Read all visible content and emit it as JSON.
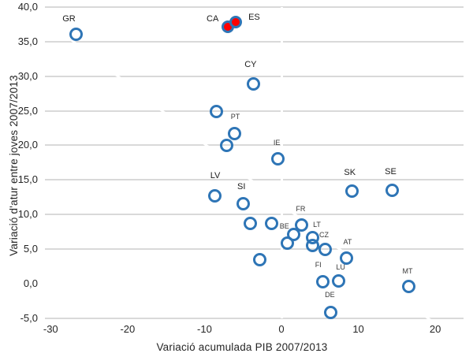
{
  "chart_data": {
    "type": "scatter",
    "title": "",
    "xlabel": "Variació acumulada PIB 2007/2013",
    "ylabel": "Variació d'atur entre joves 2007/2013",
    "x_ticks": [
      {
        "label": "-30",
        "value": -30
      },
      {
        "label": "-20",
        "value": -20
      },
      {
        "label": "-10",
        "value": -10
      },
      {
        "label": "0",
        "value": 0
      },
      {
        "label": "10",
        "value": 10
      },
      {
        "label": "20",
        "value": 20
      }
    ],
    "y_ticks": [
      {
        "label": "40,0",
        "value": 40
      },
      {
        "label": "35,0",
        "value": 35
      },
      {
        "label": "30,0",
        "value": 30
      },
      {
        "label": "25,0",
        "value": 25
      },
      {
        "label": "20,0",
        "value": 20
      },
      {
        "label": "15,0",
        "value": 15
      },
      {
        "label": "10,0",
        "value": 10
      },
      {
        "label": "5,0",
        "value": 5
      },
      {
        "label": "0,0",
        "value": 0
      },
      {
        "label": "-5,0",
        "value": -5
      }
    ],
    "xlim": [
      -30.7,
      23.7
    ],
    "ylim": [
      -5,
      40
    ],
    "grid": "horizontal-only, zero lines drawn white (appear as gaps)",
    "legend": "none",
    "colors": {
      "marker_stroke": "#2E75B6",
      "highlight_fill": "#FF0000",
      "gridline": "#D9D9D9",
      "text": "#262626"
    },
    "trendline": {
      "x1": -30.4,
      "y1": 38.2,
      "x2": 20.1,
      "y2": -5.6,
      "color": "#FFFFFF"
    },
    "zero_axis_lines": {
      "vertical_at_x0": true,
      "horizontal_at_y0": true,
      "color": "#FFFFFF"
    },
    "series": [
      {
        "name": "countries",
        "marker": "open-circle",
        "points": [
          {
            "x": -26.6,
            "y": 36.0,
            "label": "GR",
            "dx": -10,
            "dy": -20,
            "small": false
          },
          {
            "x": -3.6,
            "y": 28.8,
            "label": "CY",
            "dx": -4,
            "dy": -25,
            "small": false
          },
          {
            "x": -8.4,
            "y": 24.8,
            "label": "",
            "dx": 0,
            "dy": 0,
            "small": false
          },
          {
            "x": -6.0,
            "y": 21.6,
            "label": "PT",
            "dx": 0,
            "dy": -21,
            "small": true
          },
          {
            "x": -7.1,
            "y": 19.9,
            "label": "",
            "dx": 0,
            "dy": 0,
            "small": false
          },
          {
            "x": -0.4,
            "y": 18.0,
            "label": "IE",
            "dx": -2,
            "dy": -20,
            "small": true
          },
          {
            "x": -8.6,
            "y": 12.6,
            "label": "LV",
            "dx": 0,
            "dy": -26,
            "small": false
          },
          {
            "x": -4.9,
            "y": 11.5,
            "label": "SI",
            "dx": -3,
            "dy": -22,
            "small": false
          },
          {
            "x": 9.2,
            "y": 13.3,
            "label": "SK",
            "dx": -3,
            "dy": -24,
            "small": false
          },
          {
            "x": 14.4,
            "y": 13.4,
            "label": "SE",
            "dx": -2,
            "dy": -24,
            "small": false
          },
          {
            "x": -4.0,
            "y": 8.7,
            "label": "",
            "dx": 0,
            "dy": 0,
            "small": false
          },
          {
            "x": -1.2,
            "y": 8.7,
            "label": "",
            "dx": 0,
            "dy": 0,
            "small": false
          },
          {
            "x": 2.7,
            "y": 8.4,
            "label": "FR",
            "dx": -2,
            "dy": -20,
            "small": true
          },
          {
            "x": 1.6,
            "y": 7.1,
            "label": "",
            "dx": 0,
            "dy": 0,
            "small": false
          },
          {
            "x": 4.1,
            "y": 6.6,
            "label": "LT",
            "dx": 5,
            "dy": -16,
            "small": true
          },
          {
            "x": 0.8,
            "y": 5.8,
            "label": "BE",
            "dx": -4,
            "dy": -21,
            "small": true
          },
          {
            "x": 4.1,
            "y": 5.5,
            "label": "CZ",
            "dx": 14,
            "dy": -13,
            "small": true
          },
          {
            "x": 5.7,
            "y": 4.9,
            "label": "",
            "dx": 0,
            "dy": 0,
            "small": false
          },
          {
            "x": -2.8,
            "y": 3.4,
            "label": "",
            "dx": 0,
            "dy": 0,
            "small": false
          },
          {
            "x": 8.5,
            "y": 3.6,
            "label": "AT",
            "dx": 1,
            "dy": -20,
            "small": true
          },
          {
            "x": 5.4,
            "y": 0.2,
            "label": "FI",
            "dx": -6,
            "dy": -21,
            "small": true
          },
          {
            "x": 7.5,
            "y": 0.3,
            "label": "LU",
            "dx": 2,
            "dy": -17,
            "small": true
          },
          {
            "x": 6.5,
            "y": -4.2,
            "label": "DE",
            "dx": -2,
            "dy": -22,
            "small": true
          },
          {
            "x": 16.6,
            "y": -0.5,
            "label": "MT",
            "dx": -2,
            "dy": -19,
            "small": true
          }
        ]
      },
      {
        "name": "highlighted",
        "marker": "filled-circle",
        "points": [
          {
            "x": -7.0,
            "y": 37.1,
            "label": "CA",
            "dx": -19,
            "dy": -10,
            "small": false
          },
          {
            "x": -5.9,
            "y": 37.8,
            "label": "ES",
            "dx": 23,
            "dy": -6,
            "small": false
          }
        ]
      }
    ]
  }
}
